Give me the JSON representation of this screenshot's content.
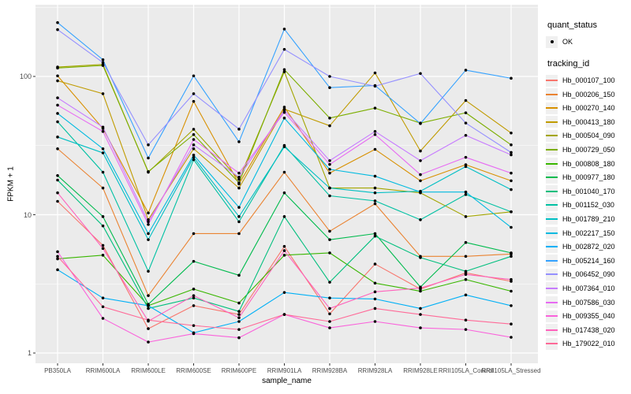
{
  "legend": {
    "quant_title": "quant_status",
    "quant_items": [
      "OK"
    ],
    "tracking_title": "tracking_id"
  },
  "chart_data": {
    "type": "line",
    "title": "",
    "xlabel": "sample_name",
    "ylabel": "FPKM + 1",
    "y_scale": "log10",
    "ylim": [
      0.95,
      260
    ],
    "y_ticks": [
      "1",
      "10",
      "100"
    ],
    "y_tick_values": [
      1,
      10,
      100
    ],
    "y_minor_values": [
      3.162,
      31.62,
      316.2
    ],
    "grid": true,
    "legend_position": "right",
    "panel_background": "#EBEBEB",
    "grid_color": "#FFFFFF",
    "point_color": "#000000",
    "quant_status_all": "OK",
    "categories": [
      "PB350LA",
      "RRIM600LA",
      "RRIM600LE",
      "RRIM600SE",
      "RRIM600PE",
      "RRIM901LA",
      "RRIM928BA",
      "RRIM928LA",
      "RRIM928LE",
      "RRII105LA_Control",
      "RRII105LA_Stressed"
    ],
    "series": [
      {
        "name": "Hb_000107_100",
        "color": "#F8766D",
        "values": [
          12.5,
          6.0,
          1.5,
          2.2,
          1.9,
          5.9,
          1.92,
          4.4,
          2.9,
          3.8,
          3.3
        ]
      },
      {
        "name": "Hb_000206_150",
        "color": "#EA8331",
        "values": [
          30,
          15.6,
          2.6,
          7.3,
          7.3,
          20.3,
          7.6,
          12.0,
          5.0,
          5.0,
          5.2
        ]
      },
      {
        "name": "Hb_000270_140",
        "color": "#D89000",
        "values": [
          101,
          42,
          10.3,
          66,
          16.7,
          60,
          20,
          29.7,
          17.6,
          23,
          17.6
        ]
      },
      {
        "name": "Hb_000413_180",
        "color": "#C09B00",
        "values": [
          93,
          75,
          9.2,
          30,
          15.6,
          58,
          44,
          106,
          28.9,
          67,
          39
        ]
      },
      {
        "name": "Hb_000504_090",
        "color": "#A3A500",
        "values": [
          117,
          122,
          20.3,
          41.5,
          18,
          108,
          15.6,
          15.6,
          14.4,
          9.7,
          10.5
        ]
      },
      {
        "name": "Hb_000729_050",
        "color": "#7CAE00",
        "values": [
          115,
          120,
          20.5,
          38,
          17,
          112,
          50,
          59,
          46,
          54.6,
          32
        ]
      },
      {
        "name": "Hb_000808_180",
        "color": "#39B600",
        "values": [
          4.8,
          5.1,
          2.2,
          2.9,
          2.3,
          5.1,
          5.3,
          3.2,
          2.8,
          3.4,
          2.8
        ]
      },
      {
        "name": "Hb_000977_180",
        "color": "#00BB4E",
        "values": [
          19.2,
          9.7,
          2.25,
          4.6,
          3.65,
          14.4,
          6.6,
          7.3,
          3.0,
          6.3,
          5.3
        ]
      },
      {
        "name": "Hb_001040_170",
        "color": "#00BF7D",
        "values": [
          17.8,
          8.3,
          2.1,
          2.5,
          2.0,
          9.7,
          3.25,
          7.0,
          4.9,
          3.9,
          5.0
        ]
      },
      {
        "name": "Hb_001152_030",
        "color": "#00C1A3",
        "values": [
          47,
          20.3,
          3.9,
          25,
          8.9,
          31.7,
          13.7,
          12.6,
          9.2,
          14.0,
          10.5
        ]
      },
      {
        "name": "Hb_001789_210",
        "color": "#00BFC4",
        "values": [
          36.5,
          28,
          6.6,
          26,
          9.7,
          31,
          15.6,
          14.4,
          14.8,
          22.3,
          15.2
        ]
      },
      {
        "name": "Hb_002217_150",
        "color": "#00BAE0",
        "values": [
          54,
          30,
          7.3,
          27,
          11.3,
          50,
          21.3,
          19.0,
          14.6,
          14.6,
          8.1
        ]
      },
      {
        "name": "Hb_002872_020",
        "color": "#00B0F6",
        "values": [
          4.0,
          2.5,
          2.2,
          1.4,
          1.69,
          2.74,
          2.5,
          2.46,
          2.1,
          2.63,
          2.2
        ]
      },
      {
        "name": "Hb_005214_160",
        "color": "#35A2FF",
        "values": [
          245,
          132,
          25.7,
          101,
          33.7,
          220,
          83,
          86,
          45.6,
          111,
          97
        ]
      },
      {
        "name": "Hb_006452_090",
        "color": "#9590FF",
        "values": [
          218,
          126,
          32,
          75,
          41.6,
          157,
          100,
          85,
          105,
          46,
          28.2
        ]
      },
      {
        "name": "Hb_007364_010",
        "color": "#C77CFF",
        "values": [
          70,
          43,
          8.9,
          32,
          18.7,
          57,
          24.6,
          40,
          24.6,
          37.5,
          27.1
        ]
      },
      {
        "name": "Hb_007586_030",
        "color": "#E76BF3",
        "values": [
          62,
          40,
          8.5,
          35,
          20,
          55,
          23.1,
          38,
          19.5,
          26,
          20
        ]
      },
      {
        "name": "Hb_009355_040",
        "color": "#FA62DB",
        "values": [
          5.4,
          1.78,
          1.2,
          1.38,
          1.29,
          1.9,
          1.52,
          1.69,
          1.52,
          1.48,
          1.3
        ]
      },
      {
        "name": "Hb_017438_020",
        "color": "#FF62BC",
        "values": [
          14.4,
          5.7,
          1.7,
          2.6,
          1.8,
          5.5,
          2.1,
          2.77,
          2.95,
          3.7,
          3.4
        ]
      },
      {
        "name": "Hb_179022_010",
        "color": "#FF6A98",
        "values": [
          5.0,
          2.16,
          1.73,
          1.58,
          1.48,
          1.9,
          1.69,
          2.1,
          1.9,
          1.73,
          1.62
        ]
      }
    ]
  }
}
